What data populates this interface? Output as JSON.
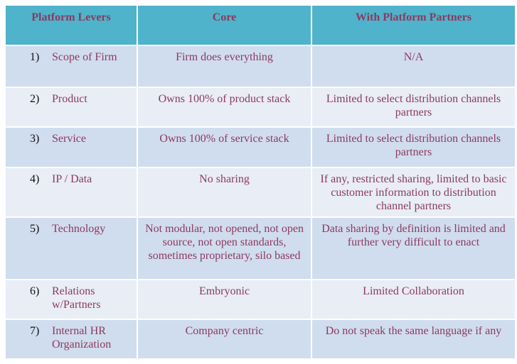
{
  "headers": [
    "Platform Levers",
    "Core",
    "With Platform Partners"
  ],
  "rows": [
    {
      "num": "1)",
      "lever": "Scope of Firm",
      "core": "Firm does everything",
      "partners": "N/A"
    },
    {
      "num": "2)",
      "lever": "Product",
      "core": "Owns 100% of product stack",
      "partners": "Limited to select distribution channels partners"
    },
    {
      "num": "3)",
      "lever": "Service",
      "core": "Owns 100% of service stack",
      "partners": "Limited to select distribution channels partners"
    },
    {
      "num": "4)",
      "lever": "IP / Data",
      "core": "No sharing",
      "partners": "If any, restricted sharing, limited to basic customer information to distribution channel partners"
    },
    {
      "num": "5)",
      "lever": "Technology",
      "core": "Not modular, not opened, not open source, not open standards, sometimes proprietary, silo based",
      "partners": "Data sharing by definition is limited and further very difficult to enact"
    },
    {
      "num": "6)",
      "lever": "Relations w/Partners",
      "core": "Embryonic",
      "partners": "Limited Collaboration"
    },
    {
      "num": "7)",
      "lever": "Internal HR Organization",
      "core": "Company centric",
      "partners": "Do not speak the same language if any"
    }
  ]
}
